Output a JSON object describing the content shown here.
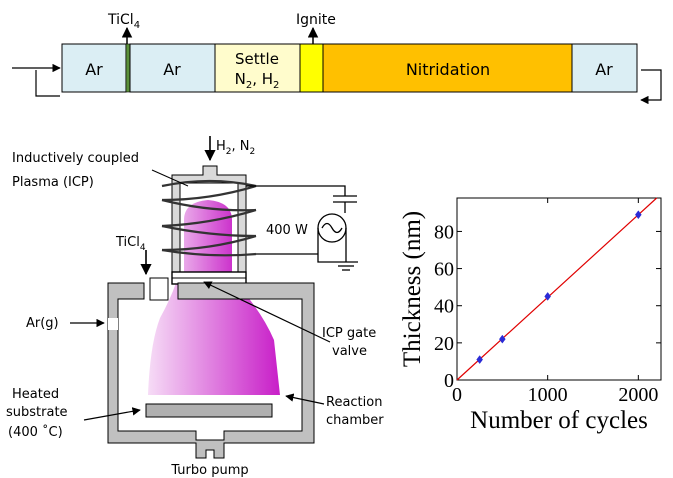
{
  "timeline": {
    "arrow_labels": {
      "ticl4": "TiCl",
      "ticl4_sub": "4",
      "ignite": "Ignite"
    },
    "segments": [
      {
        "label": "Ar",
        "color": "#dbeef4"
      },
      {
        "label": "",
        "color": "#5a8f3a"
      },
      {
        "label": "Ar",
        "color": "#dbeef4"
      },
      {
        "label_line1": "Settle",
        "label_line2a": "N",
        "label_line2a_sub": "2",
        "label_line2b": ", H",
        "label_line2b_sub": "2",
        "color": "#fffccc"
      },
      {
        "label": "",
        "color": "#ffff00"
      },
      {
        "label": "Nitridation",
        "color": "#ffc000"
      },
      {
        "label": "Ar",
        "color": "#dbeef4"
      }
    ]
  },
  "reactor": {
    "labels": {
      "gas_in_a": "H",
      "gas_in_a_sub": "2",
      "gas_in_b": ", N",
      "gas_in_b_sub": "2",
      "icp_line1": "Inductively coupled",
      "icp_line2": "Plasma (ICP)",
      "power": "400 W",
      "ticl4": "TiCl",
      "ticl4_sub": "4",
      "ar": "Ar(g)",
      "gate_line1": "ICP gate",
      "gate_line2": "valve",
      "substrate_line1": "Heated",
      "substrate_line2": "substrate",
      "substrate_line3": "(400 ˚C)",
      "chamber_line1": "Reaction",
      "chamber_line2": "chamber",
      "pump": "Turbo pump"
    },
    "colors": {
      "plasma_light": "#f6dcf6",
      "plasma_dark": "#c81ec8",
      "wall": "#c0c0c0",
      "substrate": "#b0b0b0"
    }
  },
  "chart_data": {
    "type": "scatter",
    "xlabel": "Number of cycles",
    "ylabel": "Thickness (nm)",
    "xlim": [
      0,
      2250
    ],
    "ylim": [
      0,
      98
    ],
    "xticks": [
      0,
      1000,
      2000
    ],
    "yticks": [
      0,
      20,
      40,
      60,
      80
    ],
    "points": [
      {
        "x": 250,
        "y": 11
      },
      {
        "x": 500,
        "y": 22
      },
      {
        "x": 1000,
        "y": 45
      },
      {
        "x": 2000,
        "y": 89
      }
    ],
    "fit_line": {
      "slope": 0.0445,
      "intercept": 0,
      "color": "#e00000"
    },
    "marker_color": "#2b2bd6",
    "grid": false
  }
}
